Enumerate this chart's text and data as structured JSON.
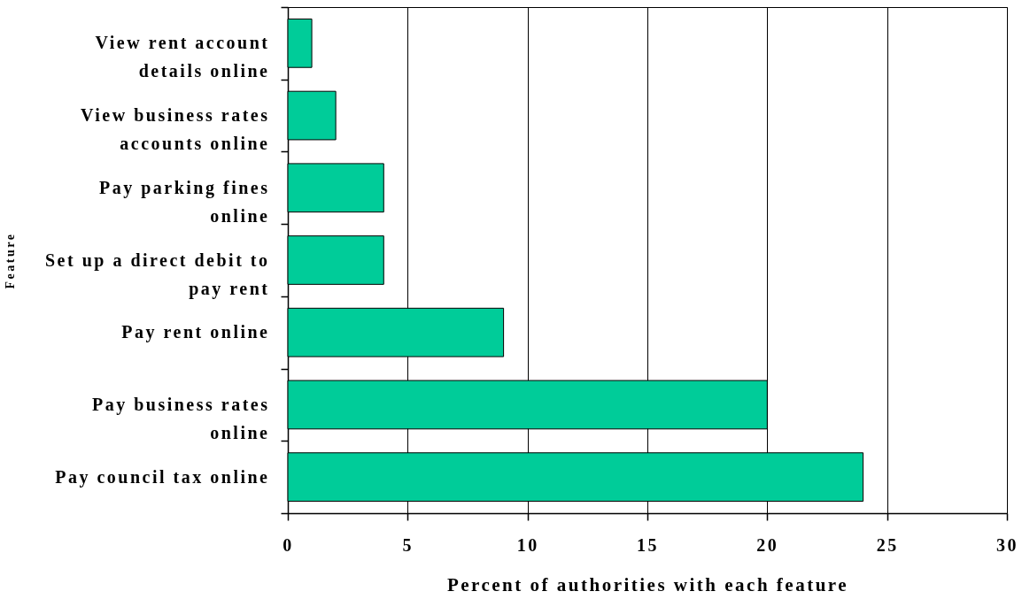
{
  "chart_data": {
    "type": "bar",
    "orientation": "horizontal",
    "categories": [
      "View rent account details online",
      "View business rates accounts online",
      "Pay parking fines online",
      "Set up a direct debit to pay rent",
      "Pay rent online",
      "Pay business rates online",
      "Pay council tax online"
    ],
    "values": [
      1,
      2,
      4,
      4,
      9,
      20,
      24
    ],
    "color": "#00cc99",
    "xlim": [
      0,
      30
    ],
    "xticks": [
      0,
      5,
      10,
      15,
      20,
      25,
      30
    ],
    "xlabel": "Percent of authorities with each feature",
    "ylabel": "Feature",
    "grid": "x"
  }
}
